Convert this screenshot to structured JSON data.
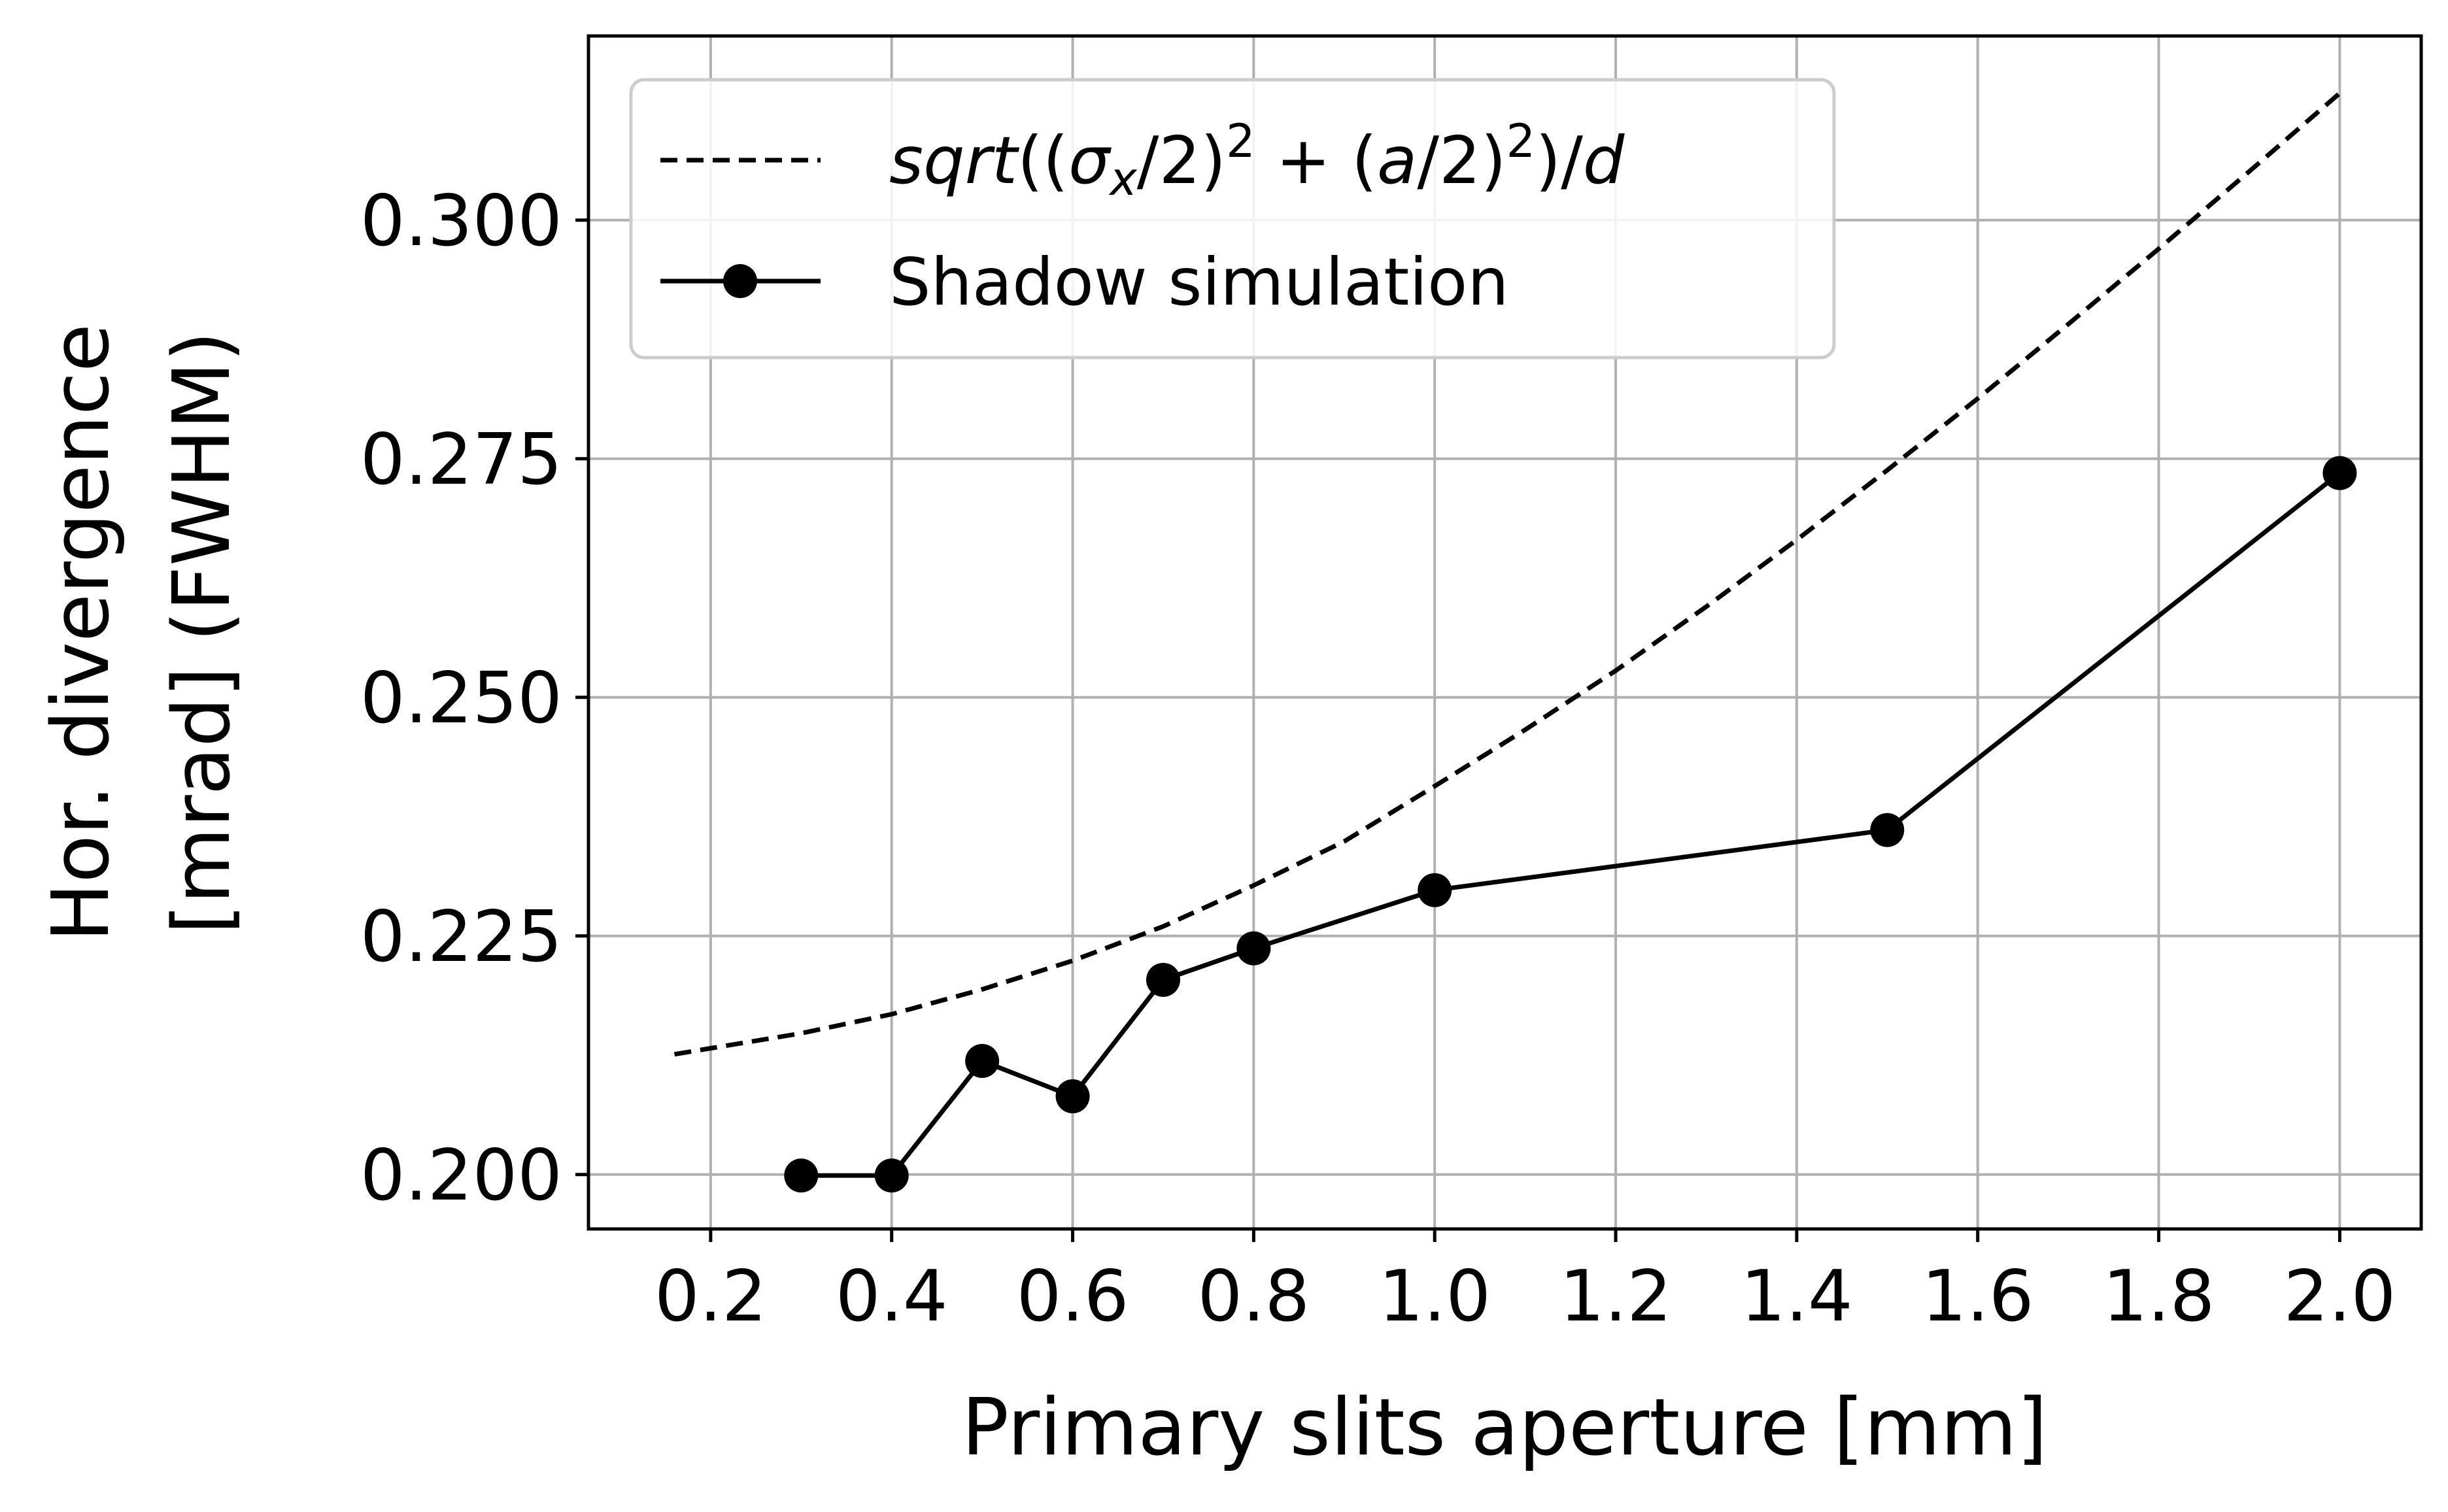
{
  "chart_data": {
    "type": "line",
    "xlabel": "Primary slits aperture [mm]",
    "ylabel": [
      "Hor. divergence",
      "[mrad] (FWHM)"
    ],
    "xlim": [
      0.065,
      2.09
    ],
    "ylim": [
      0.1943,
      0.3193
    ],
    "xticks": [
      "0.2",
      "0.4",
      "0.6",
      "0.8",
      "1.0",
      "1.2",
      "1.4",
      "1.6",
      "1.8",
      "2.0"
    ],
    "xtick_values": [
      0.2,
      0.4,
      0.6,
      0.8,
      1.0,
      1.2,
      1.4,
      1.6,
      1.8,
      2.0
    ],
    "yticks": [
      "0.200",
      "0.225",
      "0.250",
      "0.275",
      "0.300"
    ],
    "ytick_values": [
      0.2,
      0.225,
      0.25,
      0.275,
      0.3
    ],
    "grid": true,
    "legend_position": "top-left",
    "series": [
      {
        "name": "sqrt((σx/2)² + (a/2)²)/d",
        "style": "dashed",
        "color": "#000000",
        "x": [
          0.16,
          0.3,
          0.4,
          0.5,
          0.6,
          0.7,
          0.8,
          0.9,
          1.0,
          1.1,
          1.2,
          1.3,
          1.4,
          1.5,
          1.6,
          1.7,
          1.8,
          1.9,
          2.0
        ],
        "y": [
          0.2126,
          0.2148,
          0.2168,
          0.2194,
          0.2224,
          0.226,
          0.2303,
          0.2349,
          0.2407,
          0.2466,
          0.2528,
          0.2595,
          0.2665,
          0.2738,
          0.2813,
          0.2891,
          0.297,
          0.3051,
          0.3133
        ]
      },
      {
        "name": "Shadow simulation",
        "style": "solid-markers",
        "color": "#000000",
        "x": [
          0.3,
          0.4,
          0.5,
          0.6,
          0.7,
          0.8,
          1.0,
          1.5,
          2.0
        ],
        "y": [
          0.1999,
          0.1999,
          0.2119,
          0.2082,
          0.2204,
          0.2237,
          0.2298,
          0.2361,
          0.2735
        ]
      }
    ]
  }
}
